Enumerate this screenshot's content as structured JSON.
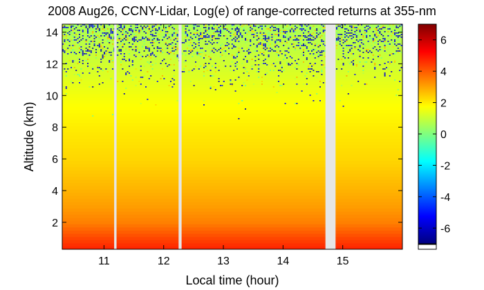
{
  "chart_data": {
    "type": "heatmap",
    "title": "2008 Aug26, CCNY-Lidar, Log(e) of range-corrected returns at 355-nm",
    "xlabel": "Local time (hour)",
    "ylabel": "Altitude (km)",
    "xlim": [
      10.3,
      16.0
    ],
    "ylim": [
      0.3,
      14.5
    ],
    "x_ticks": [
      11,
      12,
      13,
      14,
      15
    ],
    "y_ticks": [
      2,
      4,
      6,
      8,
      10,
      12,
      14
    ],
    "colorbar": {
      "range": [
        -7,
        7
      ],
      "ticks": [
        6,
        4,
        2,
        0,
        -2,
        -4,
        -6
      ],
      "colormap": "jet"
    },
    "data_gaps": [
      [
        11.17,
        11.21
      ],
      [
        12.25,
        12.3
      ],
      [
        14.71,
        14.88
      ]
    ],
    "profile": [
      {
        "altitude_km": 0.3,
        "value": 4.8
      },
      {
        "altitude_km": 1.0,
        "value": 4.3
      },
      {
        "altitude_km": 2.0,
        "value": 3.5
      },
      {
        "altitude_km": 3.0,
        "value": 3.1
      },
      {
        "altitude_km": 4.0,
        "value": 2.8
      },
      {
        "altitude_km": 6.0,
        "value": 2.3
      },
      {
        "altitude_km": 8.0,
        "value": 2.0
      },
      {
        "altitude_km": 10.0,
        "value": 1.6
      },
      {
        "altitude_km": 12.0,
        "value": 1.1
      },
      {
        "altitude_km": 14.5,
        "value": 0.6
      }
    ],
    "noise": "speckle of low values (-7) increasing above ~10 km"
  }
}
